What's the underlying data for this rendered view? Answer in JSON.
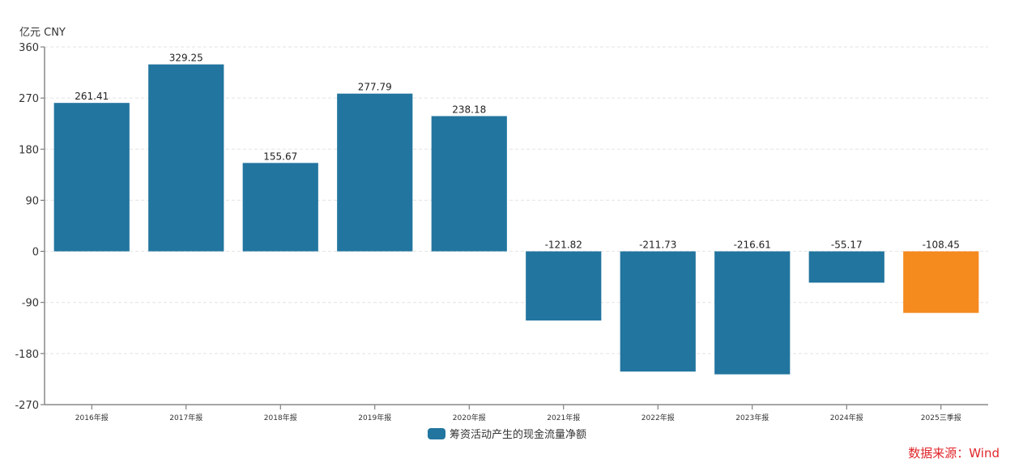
{
  "chart_data": {
    "type": "bar",
    "title": "",
    "unit_label": "亿元  CNY",
    "xlabel": "",
    "ylabel": "亿元 CNY",
    "categories": [
      "2016年报",
      "2017年报",
      "2018年报",
      "2019年报",
      "2020年报",
      "2021年报",
      "2022年报",
      "2023年报",
      "2024年报",
      "2025三季报"
    ],
    "series": [
      {
        "name": "筹资活动产生的现金流量净额",
        "values": [
          261.41,
          329.25,
          155.67,
          277.79,
          238.18,
          -121.82,
          -211.73,
          -216.61,
          -55.17,
          -108.45
        ]
      }
    ],
    "value_labels": [
      "261.41",
      "329.25",
      "155.67",
      "277.79",
      "238.18",
      "-121.82",
      "-211.73",
      "-216.61",
      "-55.17",
      "-108.45"
    ],
    "highlight_index": 9,
    "ylim": [
      -270,
      360
    ],
    "yticks": [
      360,
      270,
      180,
      90,
      0,
      -90,
      -180,
      -270
    ],
    "grid": true,
    "legend_position": "bottom",
    "colors": {
      "bar": "#22759f",
      "highlight": "#f58a1f",
      "axis": "#888888",
      "grid": "#e3e3e3"
    }
  },
  "legend": {
    "label": "筹资活动产生的现金流量净额"
  },
  "source": "数据来源：Wind"
}
